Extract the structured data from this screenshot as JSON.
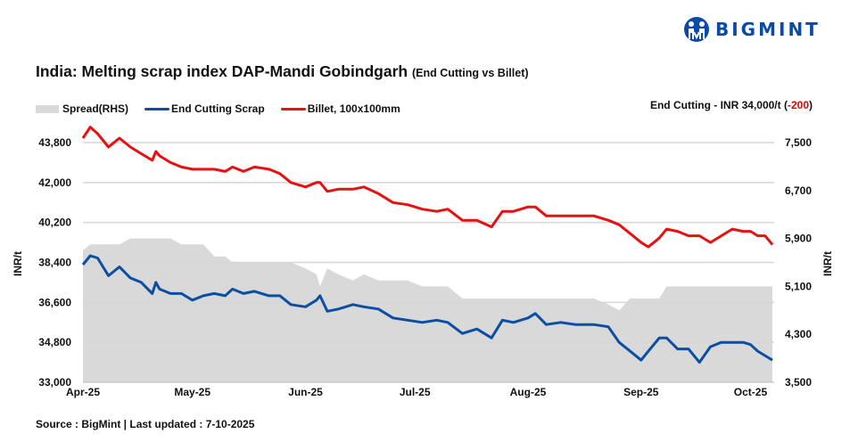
{
  "brand": {
    "name": "BIGMINT"
  },
  "header": {
    "title": "India: Melting scrap index DAP-Mandi Gobindgarh",
    "subtitle": "(End Cutting vs Billet)"
  },
  "note": {
    "prefix": "End Cutting - INR 34,000/t (",
    "change": "-200",
    "suffix": ")",
    "change_color": "#e00000"
  },
  "footer": {
    "source": "Source : BigMint | Last updated : 7-10-2025"
  },
  "chart_data": {
    "type": "line",
    "title": "India: Melting scrap index DAP-Mandi Gobindgarh (End Cutting vs Billet)",
    "ylabel": "INR/t",
    "y2label": "INR/t",
    "ylim": [
      33000,
      43800
    ],
    "y2lim": [
      3500,
      7500
    ],
    "yticks": [
      "43,800",
      "42,000",
      "40,200",
      "38,400",
      "36,600",
      "34,800",
      "33,000"
    ],
    "y2ticks": [
      "7,500",
      "6,700",
      "5,900",
      "5,100",
      "4,300",
      "3,500"
    ],
    "xticks": [
      "Apr-25",
      "May-25",
      "Jun-25",
      "Jul-25",
      "Aug-25",
      "Sep-25",
      "Oct-25"
    ],
    "xtick_dates": [
      "2025-04-01",
      "2025-05-01",
      "2025-06-01",
      "2025-07-01",
      "2025-08-01",
      "2025-09-01",
      "2025-10-01"
    ],
    "grid": true,
    "legend": "top-left",
    "x": [
      "2025-04-01",
      "2025-04-03",
      "2025-04-05",
      "2025-04-08",
      "2025-04-11",
      "2025-04-14",
      "2025-04-17",
      "2025-04-20",
      "2025-04-21",
      "2025-04-22",
      "2025-04-25",
      "2025-04-28",
      "2025-05-01",
      "2025-05-04",
      "2025-05-07",
      "2025-05-10",
      "2025-05-12",
      "2025-05-15",
      "2025-05-18",
      "2025-05-22",
      "2025-05-25",
      "2025-05-28",
      "2025-06-01",
      "2025-06-04",
      "2025-06-05",
      "2025-06-07",
      "2025-06-10",
      "2025-06-14",
      "2025-06-17",
      "2025-06-21",
      "2025-06-25",
      "2025-06-29",
      "2025-07-03",
      "2025-07-07",
      "2025-07-10",
      "2025-07-14",
      "2025-07-18",
      "2025-07-22",
      "2025-07-25",
      "2025-07-28",
      "2025-08-01",
      "2025-08-03",
      "2025-08-06",
      "2025-08-10",
      "2025-08-14",
      "2025-08-19",
      "2025-08-23",
      "2025-08-26",
      "2025-08-29",
      "2025-09-01",
      "2025-09-03",
      "2025-09-06",
      "2025-09-08",
      "2025-09-11",
      "2025-09-14",
      "2025-09-17",
      "2025-09-20",
      "2025-09-23",
      "2025-09-26",
      "2025-09-29",
      "2025-10-01",
      "2025-10-03",
      "2025-10-05",
      "2025-10-07"
    ],
    "series": [
      {
        "name": "Spread(RHS)",
        "axis": "right",
        "kind": "area",
        "color": "#d9d9d9",
        "values": [
          5700,
          5800,
          5800,
          5800,
          5800,
          5900,
          5900,
          5900,
          5900,
          5900,
          5900,
          5800,
          5800,
          5800,
          5600,
          5600,
          5500,
          5500,
          5500,
          5500,
          5500,
          5500,
          5400,
          5300,
          5100,
          5400,
          5300,
          5200,
          5300,
          5200,
          5200,
          5200,
          5100,
          5100,
          5100,
          4900,
          4900,
          4900,
          4900,
          4900,
          4900,
          4900,
          4900,
          4900,
          4900,
          4900,
          4800,
          4700,
          4900,
          4900,
          4900,
          4900,
          5100,
          5100,
          5100,
          5100,
          5100,
          5100,
          5100,
          5100,
          5100,
          5100,
          5100,
          5100
        ]
      },
      {
        "name": "End Cutting Scrap",
        "axis": "left",
        "kind": "line",
        "color": "#0b4ea2",
        "values": [
          38300,
          38700,
          38600,
          37800,
          38200,
          37700,
          37500,
          37000,
          37500,
          37200,
          37000,
          37000,
          36700,
          36900,
          37000,
          36900,
          37200,
          37000,
          37100,
          36900,
          36900,
          36500,
          36400,
          36700,
          36900,
          36200,
          36300,
          36500,
          36400,
          36300,
          35900,
          35800,
          35700,
          35800,
          35700,
          35200,
          35400,
          35000,
          35800,
          35700,
          35900,
          36100,
          35600,
          35700,
          35600,
          35600,
          35500,
          34800,
          34400,
          34000,
          34400,
          35000,
          35000,
          34500,
          34500,
          33900,
          34600,
          34800,
          34800,
          34800,
          34700,
          34400,
          34200,
          34000
        ]
      },
      {
        "name": "Billet, 100x100mm",
        "axis": "left",
        "kind": "line",
        "color": "#e81010",
        "values": [
          44000,
          44500,
          44200,
          43600,
          44000,
          43600,
          43300,
          43000,
          43400,
          43200,
          42900,
          42700,
          42600,
          42600,
          42600,
          42500,
          42700,
          42500,
          42700,
          42600,
          42400,
          42000,
          41800,
          42000,
          42000,
          41600,
          41700,
          41700,
          41800,
          41500,
          41100,
          41000,
          40800,
          40700,
          40800,
          40300,
          40300,
          40000,
          40700,
          40700,
          40900,
          40900,
          40500,
          40500,
          40500,
          40500,
          40300,
          40100,
          39700,
          39300,
          39100,
          39500,
          39900,
          39800,
          39600,
          39600,
          39300,
          39600,
          39900,
          39800,
          39800,
          39600,
          39600,
          39200
        ]
      }
    ]
  }
}
